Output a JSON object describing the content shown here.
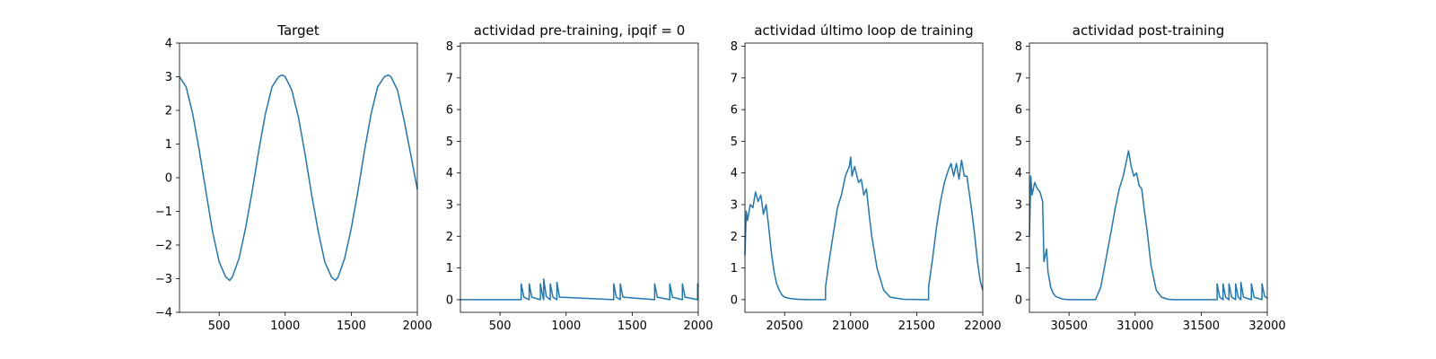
{
  "chart_data": [
    {
      "type": "line",
      "title": "Target",
      "xlim": [
        200,
        2000
      ],
      "ylim": [
        -4,
        4
      ],
      "xticks": [
        500,
        1000,
        1500,
        2000
      ],
      "yticks": [
        -4,
        -3,
        -2,
        -1,
        0,
        1,
        2,
        3,
        4
      ],
      "series_color": "#1f77b4",
      "x": [
        200,
        250,
        300,
        350,
        400,
        450,
        500,
        550,
        580,
        600,
        650,
        700,
        750,
        800,
        850,
        900,
        950,
        980,
        1000,
        1050,
        1100,
        1150,
        1200,
        1250,
        1300,
        1350,
        1380,
        1400,
        1450,
        1500,
        1550,
        1600,
        1650,
        1700,
        1750,
        1780,
        1800,
        1850,
        1900,
        1950,
        2000
      ],
      "y": [
        3.0,
        2.7,
        1.9,
        0.8,
        -0.4,
        -1.6,
        -2.5,
        -2.95,
        -3.05,
        -2.95,
        -2.4,
        -1.5,
        -0.4,
        0.8,
        1.9,
        2.7,
        3.0,
        3.05,
        3.0,
        2.6,
        1.8,
        0.7,
        -0.5,
        -1.6,
        -2.5,
        -2.95,
        -3.05,
        -2.95,
        -2.4,
        -1.5,
        -0.4,
        0.8,
        1.9,
        2.7,
        3.0,
        3.05,
        3.0,
        2.6,
        1.7,
        0.7,
        -0.35
      ]
    },
    {
      "type": "line",
      "title": "actividad pre-training, ipqif = 0",
      "xlim": [
        200,
        2000
      ],
      "ylim": [
        -0.4,
        8.1
      ],
      "xticks": [
        500,
        1000,
        1500,
        2000
      ],
      "yticks": [
        0,
        1,
        2,
        3,
        4,
        5,
        6,
        7,
        8
      ],
      "series_color": "#1f77b4",
      "x": [
        200,
        660,
        660,
        680,
        720,
        720,
        740,
        805,
        805,
        825,
        830,
        830,
        850,
        880,
        880,
        900,
        930,
        930,
        950,
        1360,
        1360,
        1380,
        1410,
        1410,
        1430,
        1670,
        1670,
        1690,
        1785,
        1785,
        1805,
        1880,
        1880,
        1900,
        1995,
        1995,
        2000
      ],
      "y": [
        0,
        0,
        0.5,
        0.08,
        0,
        0.5,
        0.08,
        0,
        0.5,
        0.08,
        0,
        0.65,
        0.1,
        0,
        0.5,
        0.08,
        0,
        0.55,
        0.08,
        0,
        0.5,
        0.08,
        0,
        0.5,
        0.08,
        0,
        0.5,
        0.08,
        0,
        0.5,
        0.08,
        0,
        0.5,
        0.08,
        0,
        0.5,
        0.4
      ]
    },
    {
      "type": "line",
      "title": "actividad último loop de training",
      "xlim": [
        20200,
        22000
      ],
      "ylim": [
        -0.4,
        8.1
      ],
      "xticks": [
        20500,
        21000,
        21500,
        22000
      ],
      "yticks": [
        0,
        1,
        2,
        3,
        4,
        5,
        6,
        7,
        8
      ],
      "series_color": "#1f77b4",
      "x": [
        20200,
        20210,
        20220,
        20240,
        20260,
        20280,
        20300,
        20320,
        20340,
        20360,
        20380,
        20400,
        20420,
        20440,
        20460,
        20480,
        20500,
        20550,
        20600,
        20700,
        20810,
        20810,
        20840,
        20870,
        20900,
        20930,
        20960,
        20990,
        21000,
        21010,
        21030,
        21060,
        21080,
        21100,
        21120,
        21140,
        21160,
        21200,
        21250,
        21300,
        21400,
        21590,
        21590,
        21620,
        21650,
        21680,
        21710,
        21740,
        21760,
        21780,
        21800,
        21820,
        21840,
        21860,
        21880,
        21900,
        21920,
        21940,
        21960,
        21980,
        22000
      ],
      "y": [
        1.4,
        2.8,
        2.5,
        3.0,
        2.9,
        3.4,
        3.1,
        3.3,
        2.7,
        3.0,
        2.3,
        1.5,
        0.9,
        0.5,
        0.3,
        0.15,
        0.08,
        0.03,
        0.01,
        0,
        0,
        0.4,
        1.3,
        2.1,
        2.9,
        3.3,
        3.9,
        4.2,
        4.5,
        3.9,
        4.2,
        3.7,
        3.8,
        3.3,
        3.5,
        2.7,
        2.0,
        1.0,
        0.3,
        0.08,
        0.01,
        0,
        0.4,
        1.3,
        2.3,
        3.1,
        3.7,
        4.1,
        4.3,
        3.9,
        4.3,
        3.8,
        4.4,
        3.9,
        3.9,
        3.3,
        2.7,
        2.0,
        1.2,
        0.6,
        0.3
      ]
    },
    {
      "type": "line",
      "title": "actividad post-training",
      "xlim": [
        30200,
        32000
      ],
      "ylim": [
        -0.4,
        8.1
      ],
      "xticks": [
        30500,
        31000,
        31500,
        32000
      ],
      "yticks": [
        0,
        1,
        2,
        3,
        4,
        5,
        6,
        7,
        8
      ],
      "series_color": "#1f77b4",
      "x": [
        30200,
        30210,
        30220,
        30240,
        30260,
        30280,
        30300,
        30310,
        30320,
        30330,
        30340,
        30360,
        30380,
        30400,
        30450,
        30500,
        30600,
        30690,
        30700,
        30740,
        30780,
        30820,
        30850,
        30880,
        30910,
        30930,
        30950,
        30970,
        30990,
        31010,
        31030,
        31050,
        31070,
        31090,
        31120,
        31160,
        31200,
        31250,
        31300,
        31620,
        31620,
        31640,
        31665,
        31665,
        31685,
        31710,
        31710,
        31730,
        31760,
        31760,
        31780,
        31800,
        31800,
        31820,
        31880,
        31880,
        31900,
        31960,
        31960,
        31980,
        32000
      ],
      "y": [
        2.0,
        3.9,
        3.3,
        3.7,
        3.5,
        3.4,
        3.1,
        1.2,
        1.4,
        1.6,
        0.9,
        0.4,
        0.2,
        0.1,
        0.02,
        0,
        0,
        0,
        0,
        0.4,
        1.3,
        2.2,
        2.9,
        3.5,
        3.9,
        4.3,
        4.7,
        4.2,
        3.9,
        4.0,
        3.6,
        3.5,
        2.8,
        2.2,
        1.1,
        0.3,
        0.08,
        0.01,
        0,
        0,
        0.5,
        0.08,
        0,
        0.5,
        0.08,
        0,
        0.5,
        0.08,
        0,
        0.5,
        0.08,
        0,
        0.55,
        0.08,
        0,
        0.5,
        0.08,
        0,
        0.5,
        0.1,
        0.05
      ]
    }
  ]
}
